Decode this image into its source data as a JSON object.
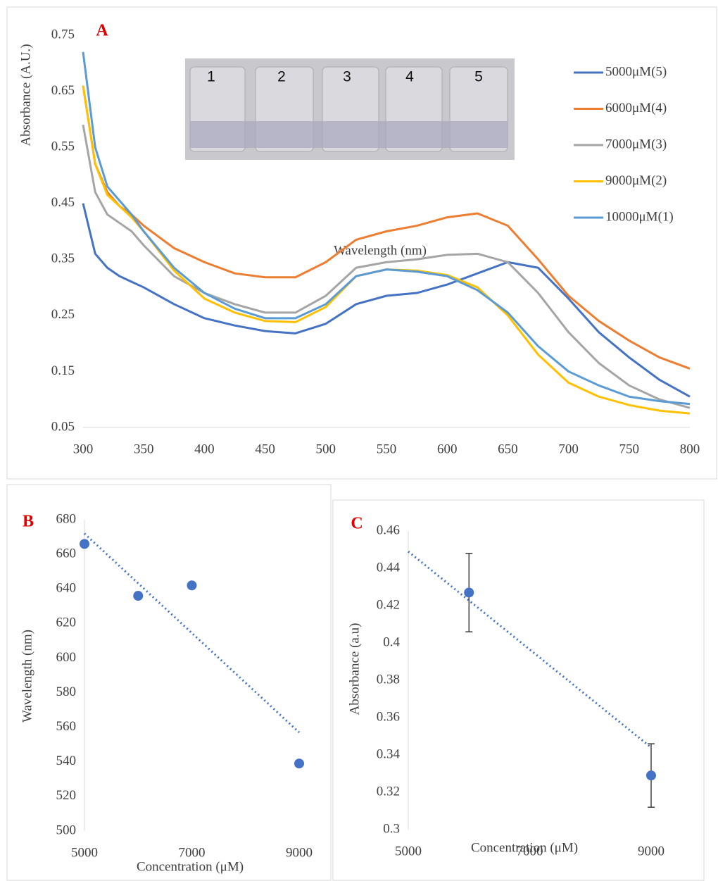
{
  "chart_data": [
    {
      "type": "line",
      "panel_label": "A",
      "x_label": "Wavelength (nm)",
      "y_label": "Absorbance (A.U.)",
      "x": [
        300,
        310,
        320,
        330,
        340,
        350,
        375,
        400,
        425,
        450,
        475,
        500,
        525,
        550,
        575,
        600,
        625,
        650,
        675,
        700,
        725,
        750,
        775,
        800
      ],
      "xlim": [
        300,
        800
      ],
      "xticks": [
        300,
        350,
        400,
        450,
        500,
        550,
        600,
        650,
        700,
        750,
        800
      ],
      "ylim": [
        0.05,
        0.75
      ],
      "yticks": [
        0.05,
        0.15,
        0.25,
        0.35,
        0.45,
        0.55,
        0.65,
        0.75
      ],
      "legend": "right",
      "annotations": [
        "1",
        "2",
        "3",
        "4",
        "5"
      ],
      "series": [
        {
          "name": "5000μM(5)",
          "color": "#4472c4",
          "values": [
            0.45,
            0.36,
            0.335,
            0.32,
            0.31,
            0.3,
            0.27,
            0.245,
            0.232,
            0.222,
            0.218,
            0.235,
            0.27,
            0.285,
            0.29,
            0.305,
            0.325,
            0.345,
            0.335,
            0.28,
            0.22,
            0.175,
            0.135,
            0.105
          ]
        },
        {
          "name": "6000μM(4)",
          "color": "#ed7d31",
          "values": [
            0.66,
            0.52,
            0.47,
            0.445,
            0.43,
            0.41,
            0.37,
            0.345,
            0.325,
            0.318,
            0.318,
            0.345,
            0.385,
            0.4,
            0.41,
            0.425,
            0.432,
            0.41,
            0.35,
            0.285,
            0.24,
            0.205,
            0.175,
            0.155
          ]
        },
        {
          "name": "7000μM(3)",
          "color": "#a5a5a5",
          "values": [
            0.59,
            0.47,
            0.43,
            0.415,
            0.4,
            0.375,
            0.32,
            0.29,
            0.27,
            0.255,
            0.255,
            0.285,
            0.335,
            0.345,
            0.35,
            0.358,
            0.36,
            0.345,
            0.29,
            0.22,
            0.165,
            0.125,
            0.1,
            0.085
          ]
        },
        {
          "name": "9000μM(2)",
          "color": "#ffc000",
          "values": [
            0.66,
            0.52,
            0.465,
            0.445,
            0.425,
            0.4,
            0.33,
            0.28,
            0.255,
            0.24,
            0.238,
            0.265,
            0.32,
            0.332,
            0.33,
            0.322,
            0.3,
            0.25,
            0.18,
            0.13,
            0.105,
            0.09,
            0.08,
            0.075
          ]
        },
        {
          "name": "10000μM(1)",
          "color": "#5b9bd5",
          "values": [
            0.72,
            0.55,
            0.48,
            0.455,
            0.43,
            0.4,
            0.335,
            0.29,
            0.262,
            0.245,
            0.245,
            0.27,
            0.32,
            0.332,
            0.328,
            0.32,
            0.295,
            0.255,
            0.195,
            0.15,
            0.125,
            0.105,
            0.097,
            0.092
          ]
        }
      ]
    },
    {
      "type": "scatter",
      "panel_label": "B",
      "x_label": "Concentration (μM)",
      "y_label": "Wavelength (nm)",
      "x": [
        5000,
        6000,
        7000,
        9000
      ],
      "values": [
        666,
        636,
        642,
        539
      ],
      "color": "#4472c4",
      "xlim": [
        5000,
        9000
      ],
      "xticks": [
        5000,
        7000,
        9000
      ],
      "ylim": [
        500,
        680
      ],
      "yticks": [
        500,
        520,
        540,
        560,
        580,
        600,
        620,
        640,
        660,
        680
      ],
      "trendline": {
        "x": [
          5000,
          9000
        ],
        "values": [
          672,
          557
        ]
      }
    },
    {
      "type": "scatter",
      "panel_label": "C",
      "x_label": "Concentration (μM)",
      "y_label": "Absorbance (a.u)",
      "x": [
        6000,
        9000
      ],
      "values": [
        0.427,
        0.329
      ],
      "errors": [
        0.021,
        0.017
      ],
      "color": "#4472c4",
      "xlim": [
        5000,
        9000
      ],
      "xticks": [
        5000,
        7000,
        9000
      ],
      "ylim": [
        0.3,
        0.46
      ],
      "yticks": [
        0.3,
        0.32,
        0.34,
        0.36,
        0.38,
        0.4,
        0.42,
        0.44,
        0.46
      ],
      "trendline": {
        "x": [
          5000,
          9000
        ],
        "values": [
          0.449,
          0.344
        ]
      }
    }
  ]
}
